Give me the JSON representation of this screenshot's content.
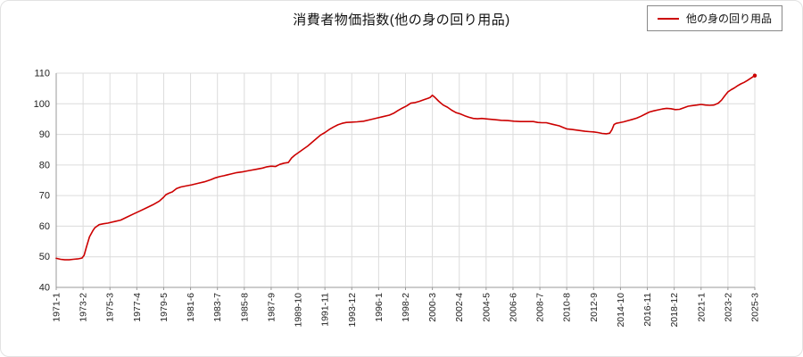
{
  "title": "消費者物価指数(他の身の回り用品)",
  "legend": {
    "label": "他の身の回り用品",
    "color": "#cc0000"
  },
  "chart_data": {
    "type": "line",
    "title": "消費者物価指数(他の身の回り用品)",
    "series_name": "他の身の回り用品",
    "color": "#cc0000",
    "ylabel": "",
    "xlabel": "",
    "ylim": [
      40,
      110
    ],
    "y_ticks": [
      40,
      50,
      60,
      70,
      80,
      90,
      100,
      110
    ],
    "x_tick_labels": [
      "1971-1",
      "1973-2",
      "1975-3",
      "1977-4",
      "1979-5",
      "1981-6",
      "1983-7",
      "1985-8",
      "1987-9",
      "1989-10",
      "1991-11",
      "1993-12",
      "1996-1",
      "1998-2",
      "2000-3",
      "2002-4",
      "2004-5",
      "2006-6",
      "2008-7",
      "2010-8",
      "2012-9",
      "2014-10",
      "2016-11",
      "2018-12",
      "2021-1",
      "2023-2",
      "2025-3"
    ],
    "x_tick_interval_months": 25,
    "x_range_months": [
      0,
      650
    ],
    "grid": true,
    "legend_position": "top-right",
    "points": [
      [
        0,
        49.5
      ],
      [
        4,
        49.2
      ],
      [
        8,
        49.0
      ],
      [
        12,
        49.0
      ],
      [
        16,
        49.2
      ],
      [
        20,
        49.3
      ],
      [
        24,
        49.6
      ],
      [
        26,
        50.5
      ],
      [
        28,
        53.0
      ],
      [
        31,
        56.5
      ],
      [
        34,
        58.5
      ],
      [
        36,
        59.5
      ],
      [
        40,
        60.5
      ],
      [
        44,
        60.8
      ],
      [
        48,
        61.0
      ],
      [
        54,
        61.5
      ],
      [
        60,
        62.0
      ],
      [
        66,
        63.0
      ],
      [
        72,
        64.0
      ],
      [
        78,
        65.0
      ],
      [
        84,
        66.0
      ],
      [
        90,
        67.0
      ],
      [
        96,
        68.2
      ],
      [
        100,
        69.5
      ],
      [
        102,
        70.3
      ],
      [
        105,
        70.8
      ],
      [
        108,
        71.2
      ],
      [
        112,
        72.3
      ],
      [
        116,
        72.8
      ],
      [
        120,
        73.1
      ],
      [
        126,
        73.5
      ],
      [
        132,
        74.0
      ],
      [
        138,
        74.5
      ],
      [
        144,
        75.2
      ],
      [
        148,
        75.8
      ],
      [
        152,
        76.2
      ],
      [
        156,
        76.5
      ],
      [
        162,
        77.0
      ],
      [
        168,
        77.5
      ],
      [
        174,
        77.8
      ],
      [
        180,
        78.2
      ],
      [
        186,
        78.6
      ],
      [
        192,
        79.0
      ],
      [
        196,
        79.4
      ],
      [
        200,
        79.6
      ],
      [
        204,
        79.5
      ],
      [
        208,
        80.2
      ],
      [
        212,
        80.6
      ],
      [
        216,
        80.8
      ],
      [
        219,
        82.3
      ],
      [
        222,
        83.2
      ],
      [
        226,
        84.2
      ],
      [
        230,
        85.2
      ],
      [
        234,
        86.2
      ],
      [
        238,
        87.4
      ],
      [
        242,
        88.6
      ],
      [
        246,
        89.8
      ],
      [
        250,
        90.6
      ],
      [
        254,
        91.6
      ],
      [
        258,
        92.4
      ],
      [
        262,
        93.1
      ],
      [
        266,
        93.6
      ],
      [
        270,
        93.9
      ],
      [
        274,
        94.0
      ],
      [
        280,
        94.1
      ],
      [
        286,
        94.3
      ],
      [
        292,
        94.8
      ],
      [
        298,
        95.3
      ],
      [
        304,
        95.8
      ],
      [
        310,
        96.3
      ],
      [
        314,
        96.9
      ],
      [
        318,
        97.8
      ],
      [
        322,
        98.6
      ],
      [
        326,
        99.3
      ],
      [
        330,
        100.2
      ],
      [
        334,
        100.4
      ],
      [
        338,
        100.8
      ],
      [
        342,
        101.3
      ],
      [
        346,
        101.8
      ],
      [
        348,
        102.1
      ],
      [
        350,
        102.8
      ],
      [
        352,
        102.2
      ],
      [
        356,
        100.8
      ],
      [
        360,
        99.6
      ],
      [
        364,
        98.9
      ],
      [
        368,
        97.9
      ],
      [
        372,
        97.1
      ],
      [
        376,
        96.7
      ],
      [
        380,
        96.1
      ],
      [
        384,
        95.6
      ],
      [
        388,
        95.2
      ],
      [
        392,
        95.1
      ],
      [
        396,
        95.2
      ],
      [
        402,
        95.0
      ],
      [
        408,
        94.8
      ],
      [
        414,
        94.6
      ],
      [
        420,
        94.5
      ],
      [
        426,
        94.3
      ],
      [
        432,
        94.2
      ],
      [
        438,
        94.2
      ],
      [
        444,
        94.2
      ],
      [
        448,
        93.9
      ],
      [
        452,
        93.8
      ],
      [
        456,
        93.8
      ],
      [
        462,
        93.3
      ],
      [
        468,
        92.8
      ],
      [
        472,
        92.2
      ],
      [
        475,
        91.8
      ],
      [
        480,
        91.6
      ],
      [
        486,
        91.3
      ],
      [
        492,
        91.0
      ],
      [
        496,
        90.9
      ],
      [
        500,
        90.8
      ],
      [
        504,
        90.6
      ],
      [
        508,
        90.3
      ],
      [
        512,
        90.2
      ],
      [
        515,
        90.4
      ],
      [
        517,
        91.5
      ],
      [
        519,
        93.2
      ],
      [
        521,
        93.6
      ],
      [
        524,
        93.8
      ],
      [
        528,
        94.1
      ],
      [
        532,
        94.5
      ],
      [
        536,
        94.9
      ],
      [
        540,
        95.3
      ],
      [
        544,
        95.9
      ],
      [
        548,
        96.6
      ],
      [
        552,
        97.3
      ],
      [
        556,
        97.7
      ],
      [
        560,
        98.0
      ],
      [
        564,
        98.3
      ],
      [
        568,
        98.5
      ],
      [
        572,
        98.4
      ],
      [
        576,
        98.1
      ],
      [
        580,
        98.2
      ],
      [
        584,
        98.7
      ],
      [
        588,
        99.2
      ],
      [
        592,
        99.4
      ],
      [
        596,
        99.6
      ],
      [
        600,
        99.8
      ],
      [
        604,
        99.6
      ],
      [
        608,
        99.5
      ],
      [
        612,
        99.6
      ],
      [
        616,
        100.2
      ],
      [
        619,
        101.2
      ],
      [
        622,
        102.6
      ],
      [
        625,
        103.9
      ],
      [
        628,
        104.6
      ],
      [
        631,
        105.2
      ],
      [
        634,
        105.9
      ],
      [
        637,
        106.5
      ],
      [
        640,
        107.0
      ],
      [
        643,
        107.6
      ],
      [
        646,
        108.3
      ],
      [
        649,
        109.0
      ],
      [
        650,
        109.2
      ]
    ]
  }
}
